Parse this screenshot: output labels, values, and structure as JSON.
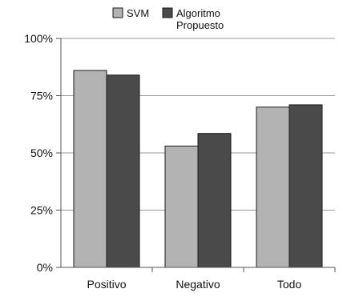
{
  "chart_data": {
    "type": "bar",
    "categories": [
      "Positivo",
      "Negativo",
      "Todo"
    ],
    "series": [
      {
        "name": "SVM",
        "values": [
          86,
          53,
          70
        ],
        "color": "#b3b3b3"
      },
      {
        "name": "Algoritmo Propuesto",
        "values": [
          84,
          58.5,
          71
        ],
        "color": "#4a4a4a"
      }
    ],
    "ylim": [
      0,
      100
    ],
    "yticks": [
      0,
      25,
      50,
      75,
      100
    ],
    "ytick_labels": [
      "0%",
      "25%",
      "50%",
      "75%",
      "100%"
    ],
    "grid": true,
    "legend": {
      "position": "top-center",
      "entries": [
        {
          "label": "SVM"
        },
        {
          "label_line1": "Algoritmo",
          "label_line2": "Propuesto"
        }
      ]
    },
    "title": "",
    "xlabel": "",
    "ylabel": ""
  }
}
